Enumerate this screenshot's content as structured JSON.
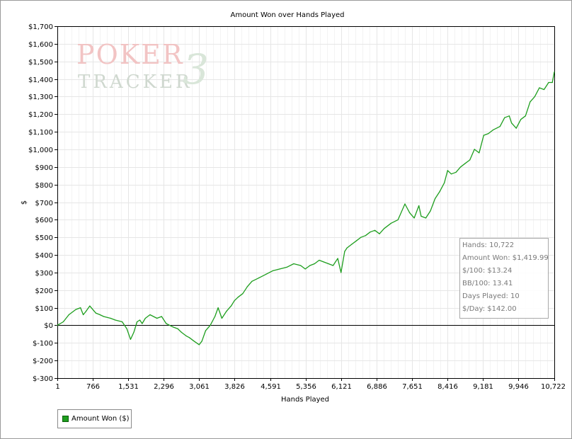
{
  "chart_data": {
    "type": "line",
    "title": "Amount Won over Hands Played",
    "xlabel": "Hands Played",
    "ylabel": "$",
    "xlim": [
      1,
      10722
    ],
    "ylim": [
      -300,
      1700
    ],
    "x_ticks": [
      "1",
      "766",
      "1,531",
      "2,296",
      "3,061",
      "3,826",
      "4,591",
      "5,356",
      "6,121",
      "6,886",
      "7,651",
      "8,416",
      "9,181",
      "9,946",
      "10,722"
    ],
    "x_tick_values": [
      1,
      766,
      1531,
      2296,
      3061,
      3826,
      4591,
      5356,
      6121,
      6886,
      7651,
      8416,
      9181,
      9946,
      10722
    ],
    "y_ticks": [
      "$-300",
      "$-200",
      "$-100",
      "$0",
      "$100",
      "$200",
      "$300",
      "$400",
      "$500",
      "$600",
      "$700",
      "$800",
      "$900",
      "$1,000",
      "$1,100",
      "$1,200",
      "$1,300",
      "$1,400",
      "$1,500",
      "$1,600",
      "$1,700"
    ],
    "y_tick_values": [
      -300,
      -200,
      -100,
      0,
      100,
      200,
      300,
      400,
      500,
      600,
      700,
      800,
      900,
      1000,
      1100,
      1200,
      1300,
      1400,
      1500,
      1600,
      1700
    ],
    "grid": true,
    "series": [
      {
        "name": "Amount Won ($)",
        "color": "#1e9e1e",
        "x": [
          1,
          130,
          250,
          400,
          500,
          560,
          620,
          700,
          830,
          920,
          1000,
          1150,
          1250,
          1400,
          1500,
          1580,
          1650,
          1720,
          1780,
          1830,
          1900,
          2000,
          2150,
          2250,
          2350,
          2500,
          2600,
          2680,
          2780,
          2850,
          2950,
          3060,
          3120,
          3200,
          3300,
          3400,
          3470,
          3550,
          3650,
          3750,
          3820,
          3900,
          4000,
          4100,
          4200,
          4350,
          4500,
          4650,
          4800,
          4950,
          5100,
          5250,
          5350,
          5450,
          5550,
          5650,
          5750,
          5850,
          5950,
          6050,
          6121,
          6200,
          6250,
          6350,
          6450,
          6550,
          6650,
          6750,
          6850,
          6950,
          7050,
          7200,
          7350,
          7500,
          7600,
          7700,
          7800,
          7850,
          7950,
          8050,
          8150,
          8250,
          8350,
          8420,
          8500,
          8600,
          8700,
          8800,
          8900,
          9000,
          9100,
          9200,
          9300,
          9400,
          9550,
          9650,
          9750,
          9800,
          9900,
          10000,
          10100,
          10200,
          10300,
          10400,
          10500,
          10600,
          10680,
          10722
        ],
        "y": [
          0,
          20,
          60,
          90,
          100,
          60,
          80,
          110,
          70,
          60,
          50,
          40,
          30,
          20,
          -20,
          -80,
          -40,
          20,
          30,
          10,
          40,
          60,
          40,
          50,
          10,
          -10,
          -20,
          -40,
          -60,
          -70,
          -90,
          -110,
          -90,
          -30,
          0,
          50,
          100,
          40,
          80,
          110,
          140,
          160,
          180,
          220,
          250,
          270,
          290,
          310,
          320,
          330,
          350,
          340,
          320,
          340,
          350,
          370,
          360,
          350,
          340,
          380,
          300,
          420,
          440,
          460,
          480,
          500,
          510,
          530,
          540,
          520,
          550,
          580,
          600,
          690,
          640,
          610,
          680,
          620,
          610,
          650,
          720,
          760,
          810,
          880,
          860,
          870,
          900,
          920,
          940,
          1000,
          980,
          1080,
          1090,
          1110,
          1130,
          1180,
          1190,
          1150,
          1120,
          1170,
          1190,
          1270,
          1300,
          1350,
          1340,
          1380,
          1380,
          1440
        ]
      }
    ]
  },
  "stats": {
    "hands": "Hands: 10,722",
    "amount_won": "Amount Won: $1,419.99",
    "per100": "$/100: $13.24",
    "bb100": "BB/100: 13.41",
    "days_played": "Days Played: 10",
    "per_day": "$/Day: $142.00"
  },
  "legend": {
    "label": "Amount Won ($)"
  },
  "watermark": {
    "line1": "POKER",
    "line2": "TRACKER",
    "mark": "3"
  }
}
